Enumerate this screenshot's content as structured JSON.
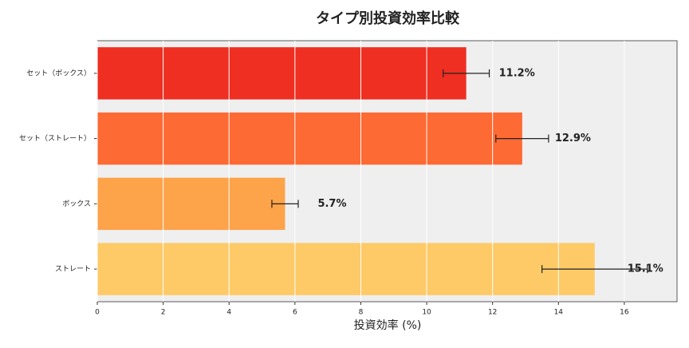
{
  "chart_data": {
    "type": "bar",
    "orientation": "horizontal",
    "title": "タイプ別投資効率比較",
    "xlabel": "投資効率 (%)",
    "categories": [
      "セット（ボックス）",
      "セット（ストレート）",
      "ボックス",
      "ストレート"
    ],
    "values": [
      11.2,
      12.9,
      5.7,
      15.1
    ],
    "errors": [
      0.7,
      0.8,
      0.4,
      1.6
    ],
    "value_labels": [
      "11.2%",
      "12.9%",
      "5.7%",
      "15.1%"
    ],
    "colors": [
      "#ee2f22",
      "#fd6a33",
      "#fda349",
      "#fdca67"
    ],
    "xlim": [
      0,
      17.6
    ],
    "xticks": [
      0,
      2,
      4,
      6,
      8,
      10,
      12,
      14,
      16
    ],
    "grid": true
  }
}
